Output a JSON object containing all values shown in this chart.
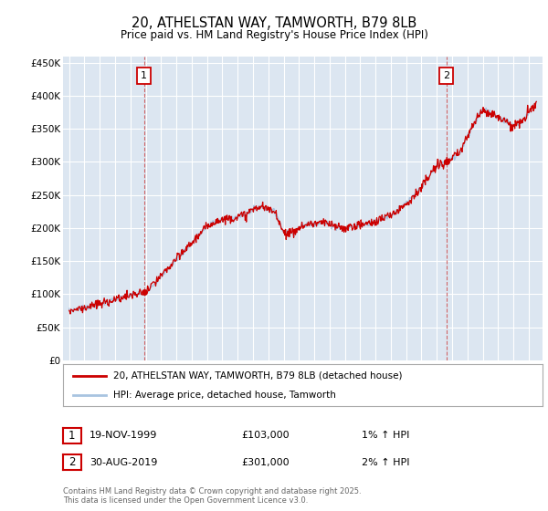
{
  "title": "20, ATHELSTAN WAY, TAMWORTH, B79 8LB",
  "subtitle": "Price paid vs. HM Land Registry's House Price Index (HPI)",
  "ylim": [
    0,
    460000
  ],
  "yticks": [
    0,
    50000,
    100000,
    150000,
    200000,
    250000,
    300000,
    350000,
    400000,
    450000
  ],
  "ytick_labels": [
    "£0",
    "£50K",
    "£100K",
    "£150K",
    "£200K",
    "£250K",
    "£300K",
    "£350K",
    "£400K",
    "£450K"
  ],
  "background_color": "#dce6f1",
  "grid_color": "#ffffff",
  "line_color_hpi": "#a8c4e0",
  "line_color_price": "#cc0000",
  "marker_color": "#cc0000",
  "legend_entry1": "20, ATHELSTAN WAY, TAMWORTH, B79 8LB (detached house)",
  "legend_entry2": "HPI: Average price, detached house, Tamworth",
  "annotation1_date": "19-NOV-1999",
  "annotation1_price": "£103,000",
  "annotation1_hpi": "1% ↑ HPI",
  "annotation2_date": "30-AUG-2019",
  "annotation2_price": "£301,000",
  "annotation2_hpi": "2% ↑ HPI",
  "footer": "Contains HM Land Registry data © Crown copyright and database right 2025.\nThis data is licensed under the Open Government Licence v3.0.",
  "sale1_x": 1999.88,
  "sale1_y": 103000,
  "sale2_x": 2019.63,
  "sale2_y": 301000,
  "xlim_left": 1994.6,
  "xlim_right": 2025.9
}
